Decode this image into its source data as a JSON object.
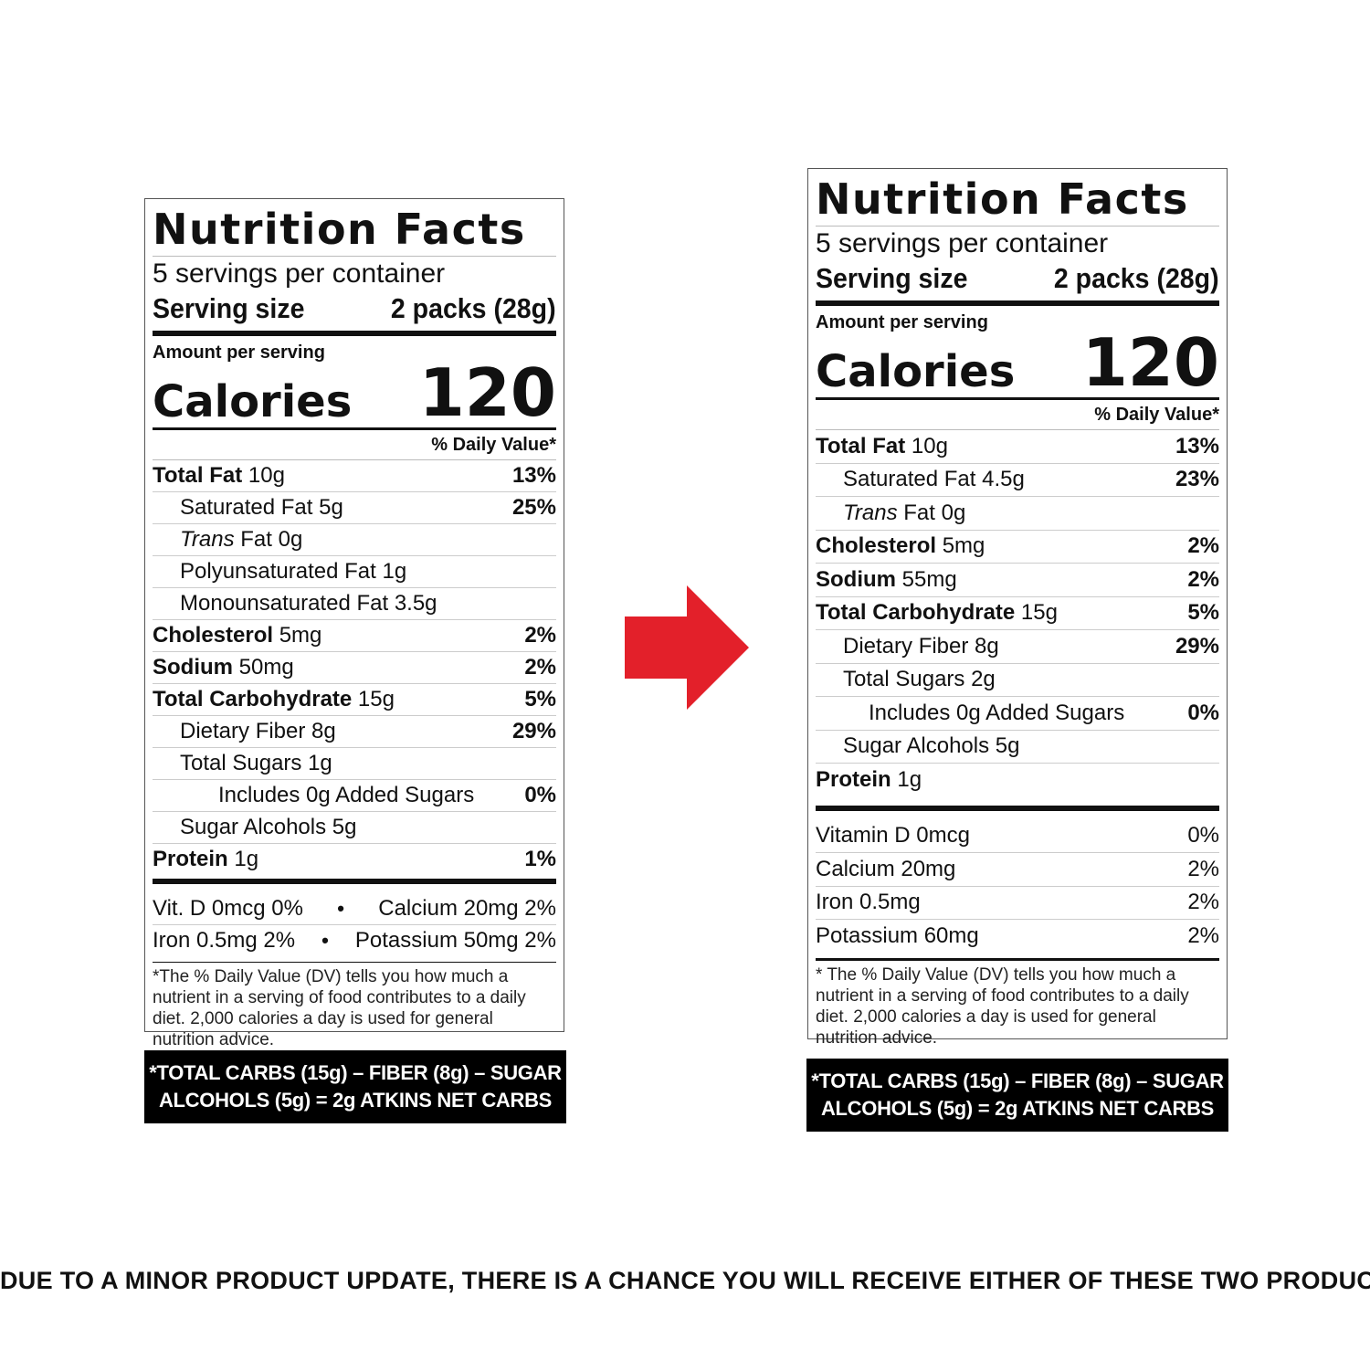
{
  "labels": [
    {
      "title": "Nutrition Facts",
      "servings_per_container": "5 servings per container",
      "serving_size_label": "Serving size",
      "serving_size_value": "2 packs (28g)",
      "amount_per_serving": "Amount per serving",
      "calories_label": "Calories",
      "calories_value": "120",
      "daily_value_header": "% Daily Value*",
      "rows": [
        {
          "name": "Total Fat",
          "amount": "10g",
          "pct": "13%"
        },
        {
          "name": "Saturated Fat",
          "amount": "5g",
          "pct": "25%"
        },
        {
          "name_italic": "Trans",
          "name": "Fat",
          "amount": "0g",
          "pct": ""
        },
        {
          "name": "Polyunsaturated Fat",
          "amount": "1g",
          "pct": ""
        },
        {
          "name": "Monounsaturated Fat",
          "amount": "3.5g",
          "pct": ""
        },
        {
          "name": "Cholesterol",
          "amount": "5mg",
          "pct": "2%"
        },
        {
          "name": "Sodium",
          "amount": "50mg",
          "pct": "2%"
        },
        {
          "name": "Total Carbohydrate",
          "amount": "15g",
          "pct": "5%"
        },
        {
          "name": "Dietary Fiber",
          "amount": "8g",
          "pct": "29%"
        },
        {
          "name": "Total Sugars",
          "amount": "1g",
          "pct": ""
        },
        {
          "name": "Includes 0g Added Sugars",
          "amount": "",
          "pct": "0%"
        },
        {
          "name": "Sugar Alcohols",
          "amount": "5g",
          "pct": ""
        },
        {
          "name": "Protein",
          "amount": "1g",
          "pct": "1%"
        }
      ],
      "vitamins": [
        {
          "left": "Vit. D 0mcg 0%",
          "right": "Calcium 20mg 2%"
        },
        {
          "left": "Iron 0.5mg 2%",
          "right": "Potassium 50mg 2%"
        }
      ],
      "footnote": "*The % Daily Value (DV) tells you how much a nutrient in a serving of food contributes to a daily diet. 2,000 calories a day is used for general nutrition advice.",
      "net_carbs_line1": "*TOTAL CARBS (15g) – FIBER (8g) – SUGAR",
      "net_carbs_line2": "ALCOHOLS (5g) = 2g ATKINS NET CARBS"
    },
    {
      "title": "Nutrition Facts",
      "servings_per_container": "5 servings per container",
      "serving_size_label": "Serving size",
      "serving_size_value": "2 packs (28g)",
      "amount_per_serving": "Amount per serving",
      "calories_label": "Calories",
      "calories_value": "120",
      "daily_value_header": "% Daily Value*",
      "rows": [
        {
          "name": "Total Fat",
          "amount": "10g",
          "pct": "13%"
        },
        {
          "name": "Saturated Fat",
          "amount": "4.5g",
          "pct": "23%"
        },
        {
          "name_italic": "Trans",
          "name": "Fat",
          "amount": "0g",
          "pct": ""
        },
        {
          "name": "Cholesterol",
          "amount": "5mg",
          "pct": "2%"
        },
        {
          "name": "Sodium",
          "amount": "55mg",
          "pct": "2%"
        },
        {
          "name": "Total Carbohydrate",
          "amount": "15g",
          "pct": "5%"
        },
        {
          "name": "Dietary Fiber",
          "amount": "8g",
          "pct": "29%"
        },
        {
          "name": "Total Sugars",
          "amount": "2g",
          "pct": ""
        },
        {
          "name": "Includes 0g Added Sugars",
          "amount": "",
          "pct": "0%"
        },
        {
          "name": "Sugar Alcohols",
          "amount": "5g",
          "pct": ""
        },
        {
          "name": "Protein",
          "amount": "1g",
          "pct": ""
        }
      ],
      "vitamins": [
        {
          "name": "Vitamin D 0mcg",
          "pct": "0%"
        },
        {
          "name": "Calcium 20mg",
          "pct": "2%"
        },
        {
          "name": "Iron 0.5mg",
          "pct": "2%"
        },
        {
          "name": "Potassium 60mg",
          "pct": "2%"
        }
      ],
      "footnote": "* The % Daily Value (DV) tells you how much a nutrient in a serving of food contributes to a daily diet. 2,000 calories a day is used for general nutrition advice.",
      "net_carbs_line1": "*TOTAL CARBS (15g) – FIBER (8g) – SUGAR",
      "net_carbs_line2": "ALCOHOLS (5g) = 2g ATKINS NET CARBS"
    }
  ],
  "arrow_color": "#e3202a",
  "notice": "DUE TO A MINOR PRODUCT UPDATE, THERE IS A CHANCE YOU WILL RECEIVE EITHER OF THESE TWO PRODUCTS"
}
